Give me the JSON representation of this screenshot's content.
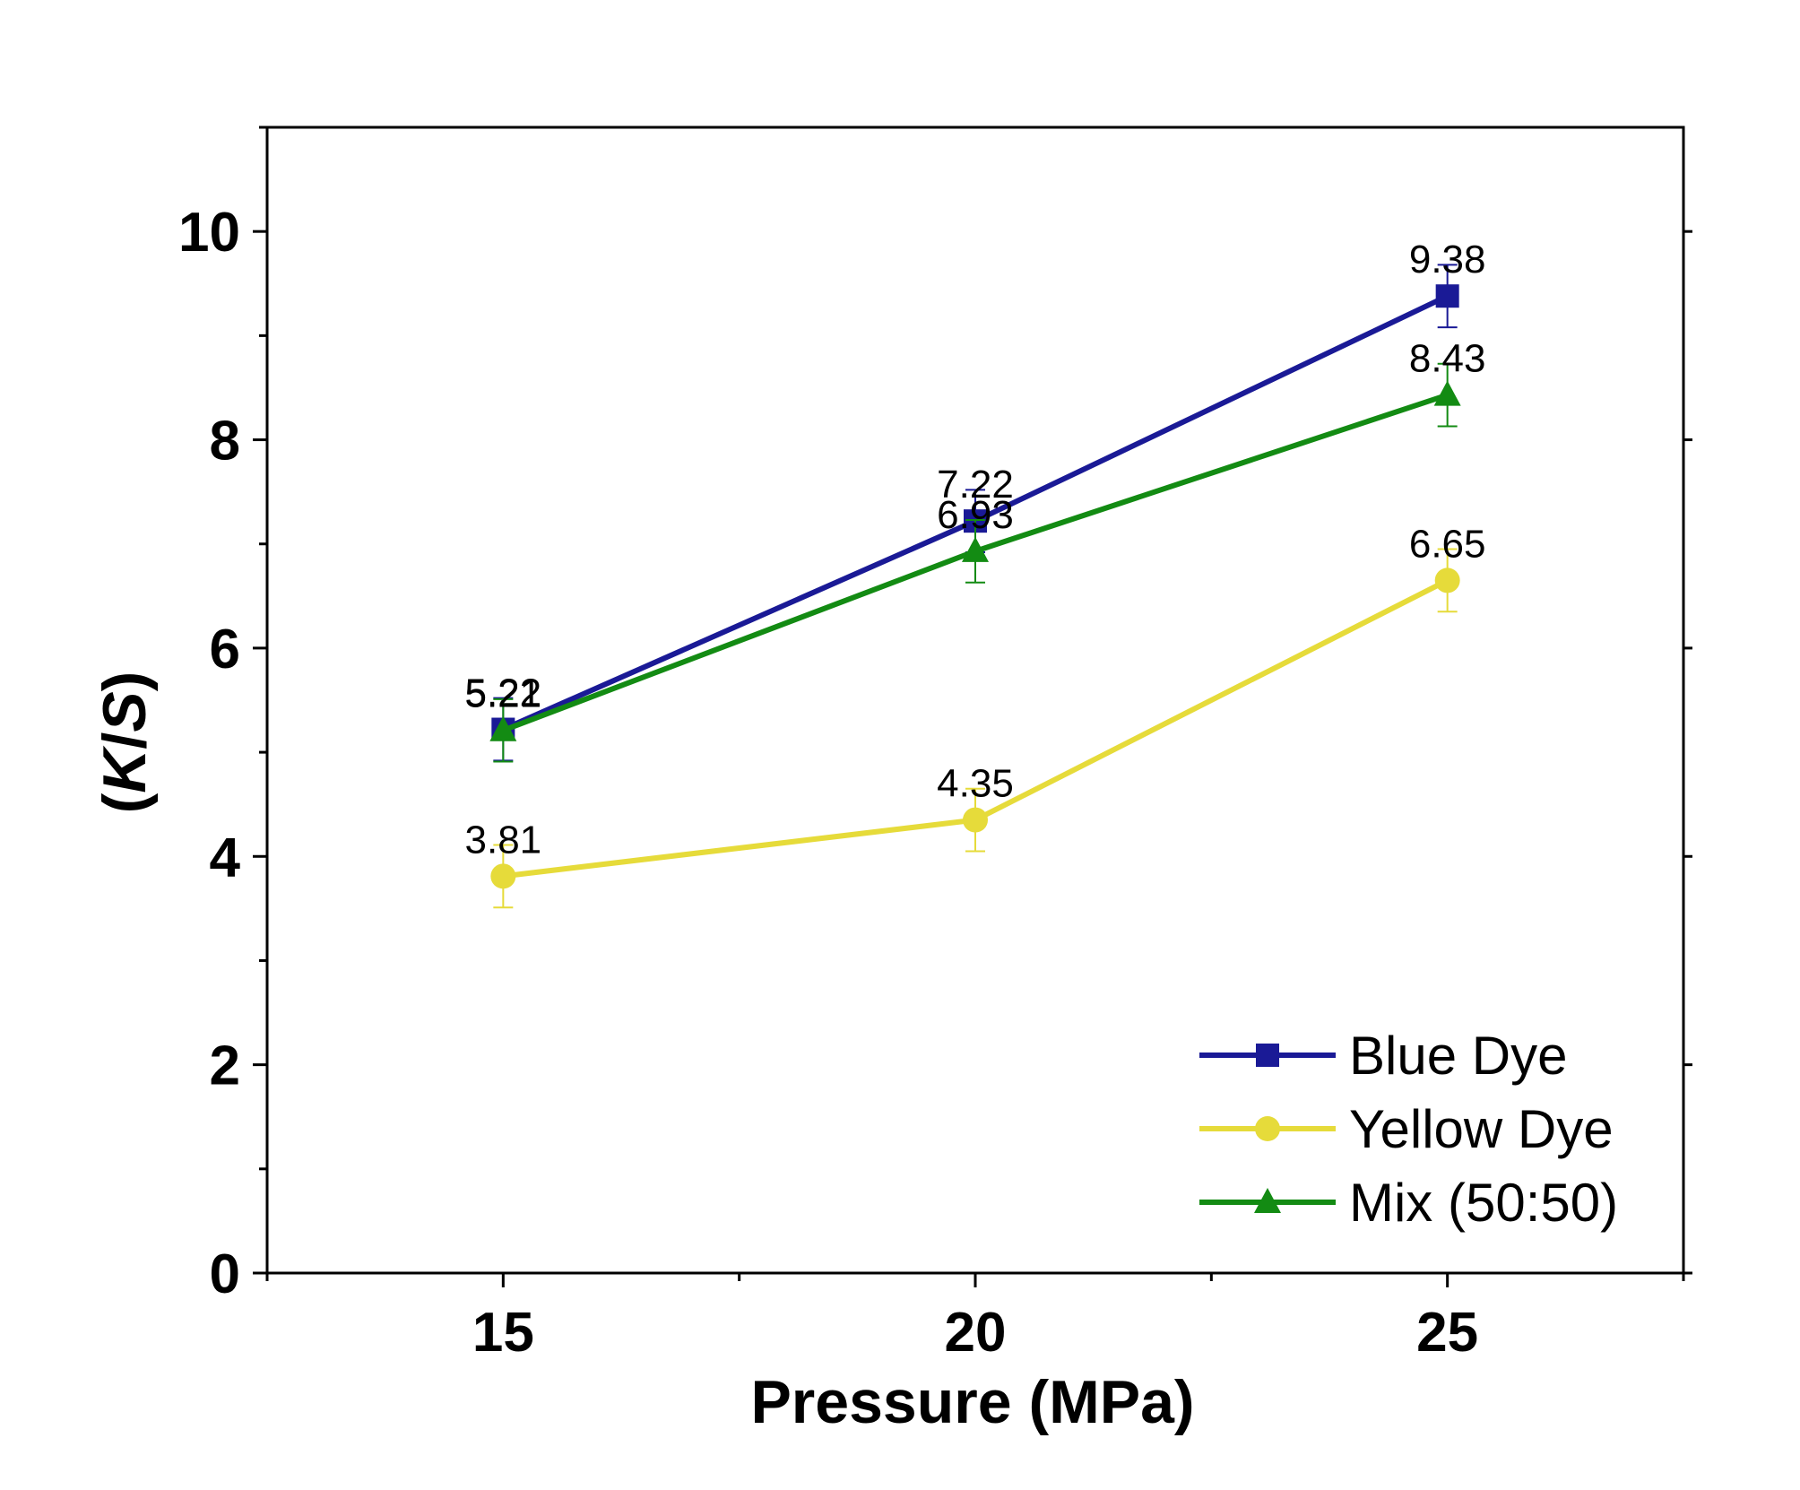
{
  "chart_data": {
    "type": "line",
    "xlabel": "Pressure (MPa)",
    "ylabel_parts": [
      "(",
      "K",
      "/",
      "S",
      ")"
    ],
    "x": [
      15,
      20,
      25
    ],
    "x_ticks": [
      15,
      20,
      25
    ],
    "xlim": [
      12.5,
      27.5
    ],
    "y_ticks": [
      0,
      2,
      4,
      6,
      8,
      10
    ],
    "ylim": [
      0,
      11
    ],
    "legend_position": "bottom-right",
    "series": [
      {
        "name": "Blue Dye",
        "values": [
          5.22,
          7.22,
          9.38
        ],
        "errors": [
          0.3,
          0.3,
          0.3
        ],
        "labels": [
          "5.22",
          "7.22",
          "9.38"
        ],
        "color": "#1a1a96",
        "marker": "square"
      },
      {
        "name": "Yellow Dye",
        "values": [
          3.81,
          4.35,
          6.65
        ],
        "errors": [
          0.3,
          0.3,
          0.3
        ],
        "labels": [
          "3.81",
          "4.35",
          "6.65"
        ],
        "color": "#e6db3a",
        "marker": "circle"
      },
      {
        "name": "Mix (50:50)",
        "values": [
          5.21,
          6.93,
          8.43
        ],
        "errors": [
          0.3,
          0.3,
          0.3
        ],
        "labels": [
          "5.21",
          "6.93",
          "8.43"
        ],
        "color": "#138b13",
        "marker": "triangle"
      }
    ]
  }
}
